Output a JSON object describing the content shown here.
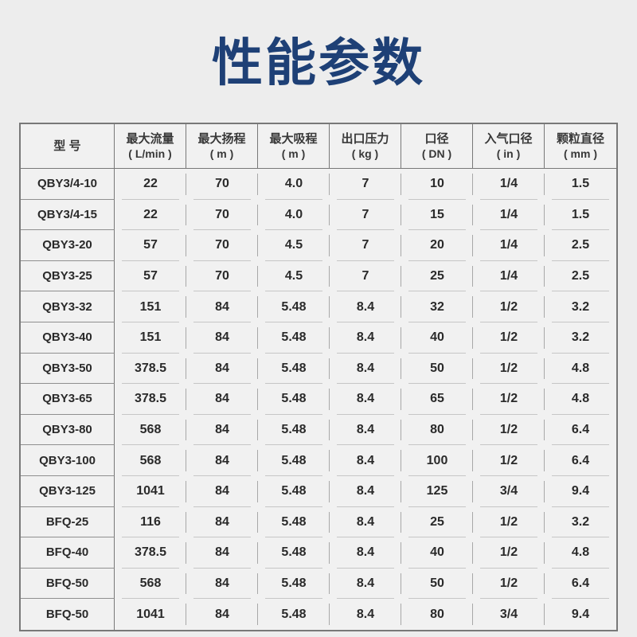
{
  "page": {
    "background_color": "#ededed",
    "title_color": "#1e4076",
    "border_color": "#787878"
  },
  "chart_data": {
    "type": "table",
    "title": "性能参数",
    "columns": [
      {
        "label": "型 号",
        "unit": ""
      },
      {
        "label": "最大流量",
        "unit": "( L/min )"
      },
      {
        "label": "最大扬程",
        "unit": "( m )"
      },
      {
        "label": "最大吸程",
        "unit": "( m )"
      },
      {
        "label": "出口压力",
        "unit": "( kg )"
      },
      {
        "label": "口径",
        "unit": "( DN )"
      },
      {
        "label": "入气口径",
        "unit": "( in )"
      },
      {
        "label": "颗粒直径",
        "unit": "( mm )"
      }
    ],
    "rows": [
      [
        "QBY3/4-10",
        "22",
        "70",
        "4.0",
        "7",
        "10",
        "1/4",
        "1.5"
      ],
      [
        "QBY3/4-15",
        "22",
        "70",
        "4.0",
        "7",
        "15",
        "1/4",
        "1.5"
      ],
      [
        "QBY3-20",
        "57",
        "70",
        "4.5",
        "7",
        "20",
        "1/4",
        "2.5"
      ],
      [
        "QBY3-25",
        "57",
        "70",
        "4.5",
        "7",
        "25",
        "1/4",
        "2.5"
      ],
      [
        "QBY3-32",
        "151",
        "84",
        "5.48",
        "8.4",
        "32",
        "1/2",
        "3.2"
      ],
      [
        "QBY3-40",
        "151",
        "84",
        "5.48",
        "8.4",
        "40",
        "1/2",
        "3.2"
      ],
      [
        "QBY3-50",
        "378.5",
        "84",
        "5.48",
        "8.4",
        "50",
        "1/2",
        "4.8"
      ],
      [
        "QBY3-65",
        "378.5",
        "84",
        "5.48",
        "8.4",
        "65",
        "1/2",
        "4.8"
      ],
      [
        "QBY3-80",
        "568",
        "84",
        "5.48",
        "8.4",
        "80",
        "1/2",
        "6.4"
      ],
      [
        "QBY3-100",
        "568",
        "84",
        "5.48",
        "8.4",
        "100",
        "1/2",
        "6.4"
      ],
      [
        "QBY3-125",
        "1041",
        "84",
        "5.48",
        "8.4",
        "125",
        "3/4",
        "9.4"
      ],
      [
        "BFQ-25",
        "116",
        "84",
        "5.48",
        "8.4",
        "25",
        "1/2",
        "3.2"
      ],
      [
        "BFQ-40",
        "378.5",
        "84",
        "5.48",
        "8.4",
        "40",
        "1/2",
        "4.8"
      ],
      [
        "BFQ-50",
        "568",
        "84",
        "5.48",
        "8.4",
        "50",
        "1/2",
        "6.4"
      ],
      [
        "BFQ-50",
        "1041",
        "84",
        "5.48",
        "8.4",
        "80",
        "3/4",
        "9.4"
      ]
    ]
  }
}
